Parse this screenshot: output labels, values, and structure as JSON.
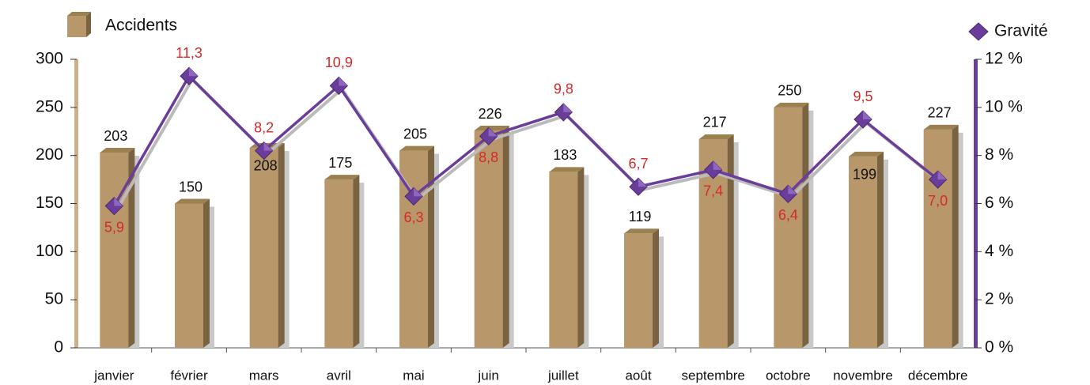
{
  "chart_data": {
    "type": "bar",
    "categories": [
      "janvier",
      "février",
      "mars",
      "avril",
      "mai",
      "juin",
      "juillet",
      "août",
      "septembre",
      "octobre",
      "novembre",
      "décembre"
    ],
    "series": [
      {
        "name": "Accidents",
        "type": "bar",
        "color": "#b8986a",
        "values": [
          203,
          150,
          208,
          175,
          205,
          226,
          183,
          119,
          217,
          250,
          199,
          227
        ]
      },
      {
        "name": "Gravité",
        "type": "line",
        "axis": "y2",
        "color": "#6a3d9a",
        "values": [
          5.9,
          11.3,
          8.2,
          10.9,
          6.3,
          8.8,
          9.8,
          6.7,
          7.4,
          6.4,
          9.5,
          7.0
        ],
        "value_labels": [
          "5,9",
          "11,3",
          "8,2",
          "10,9",
          "6,3",
          "8,8",
          "9,8",
          "6,7",
          "7,4",
          "6,4",
          "9,5",
          "7,0"
        ]
      }
    ],
    "ylim": [
      0,
      300
    ],
    "yticks": [
      0,
      50,
      100,
      150,
      200,
      250,
      300
    ],
    "y2lim": [
      0,
      12
    ],
    "y2ticks": [
      {
        "value": 0,
        "label": "0 %"
      },
      {
        "value": 2,
        "label": "2 %"
      },
      {
        "value": 4,
        "label": "4 %"
      },
      {
        "value": 6,
        "label": "6 %"
      },
      {
        "value": 8,
        "label": "8 %"
      },
      {
        "value": 10,
        "label": "10 %"
      },
      {
        "value": 12,
        "label": "12 %"
      }
    ]
  }
}
